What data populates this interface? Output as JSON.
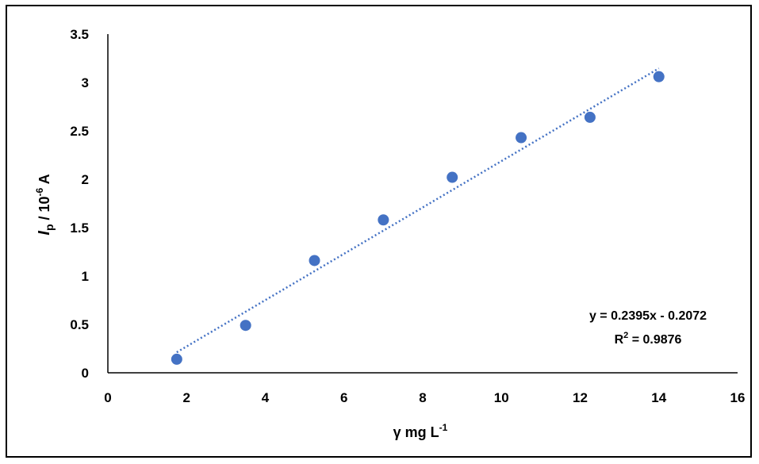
{
  "chart_data": {
    "type": "scatter",
    "x": [
      1.75,
      3.5,
      5.25,
      7.0,
      8.75,
      10.5,
      12.25,
      14.0
    ],
    "y": [
      0.14,
      0.49,
      1.16,
      1.58,
      2.02,
      2.43,
      2.64,
      3.06
    ],
    "xlim": [
      0,
      16
    ],
    "ylim": [
      0,
      3.5
    ],
    "x_ticks": [
      "0",
      "2",
      "4",
      "6",
      "8",
      "10",
      "12",
      "14",
      "16"
    ],
    "y_ticks": [
      "0",
      "0.5",
      "1",
      "1.5",
      "2",
      "2.5",
      "3",
      "3.5"
    ],
    "x_tick_values": [
      0,
      2,
      4,
      6,
      8,
      10,
      12,
      14,
      16
    ],
    "y_tick_values": [
      0,
      0.5,
      1,
      1.5,
      2,
      2.5,
      3,
      3.5
    ],
    "xlabel": {
      "base": "γ mg L",
      "superscript": "-1"
    },
    "ylabel": {
      "italic": "I",
      "subscript": "p",
      "middle": " / 10",
      "superscript": "-6",
      "tail": " A"
    },
    "grid": false,
    "marker_color": "#4472C4",
    "trendline": {
      "type": "linear",
      "slope": 0.2395,
      "intercept": -0.2072,
      "x_range": [
        1.75,
        14.0
      ],
      "color": "#4472C4",
      "style": "dotted"
    },
    "annotations": {
      "equation": "y = 0.2395x - 0.2072",
      "r2_label": "R",
      "r2_sup": "2",
      "r2_value": " = 0.9876"
    }
  }
}
